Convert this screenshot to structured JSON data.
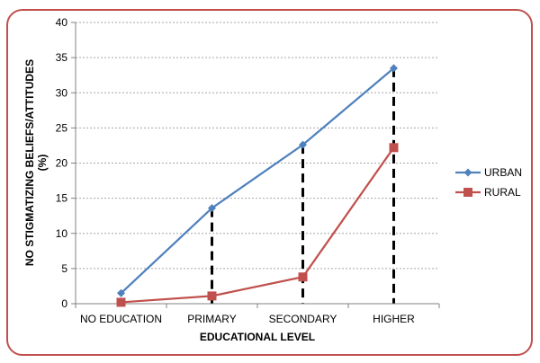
{
  "chart_data": {
    "type": "line",
    "title": "",
    "xlabel": "EDUCATIONAL LEVEL",
    "ylabel_line1": "NO  STIGMATIZING BELIEFS/ATTITUDES",
    "ylabel_line2": "(%)",
    "categories": [
      "NO EDUCATION",
      "PRIMARY",
      "SECONDARY",
      "HIGHER"
    ],
    "ylim": [
      0,
      40
    ],
    "yticks": [
      0,
      5,
      10,
      15,
      20,
      25,
      30,
      35,
      40
    ],
    "grid": true,
    "legend_position": "right",
    "series": [
      {
        "name": "URBAN",
        "values": [
          1.5,
          13.6,
          22.6,
          33.5
        ],
        "color": "#4f81bd",
        "marker": "diamond"
      },
      {
        "name": "RURAL",
        "values": [
          0.2,
          1.1,
          3.8,
          22.2
        ],
        "color": "#c0504d",
        "marker": "square"
      }
    ],
    "drop_lines": {
      "style": "dashed",
      "color": "#000000",
      "from_series": "URBAN",
      "categories": [
        "PRIMARY",
        "SECONDARY",
        "HIGHER"
      ]
    }
  },
  "colors": {
    "frame_border": "#c0504d",
    "gridline": "#a6a6a6"
  }
}
